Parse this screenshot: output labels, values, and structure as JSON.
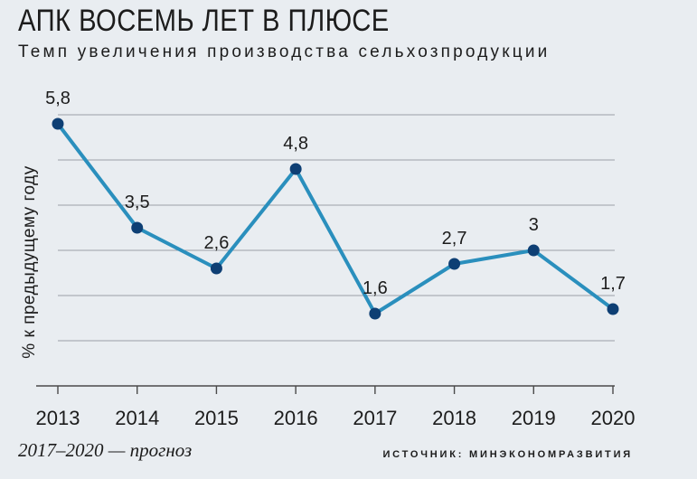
{
  "header": {
    "title": "АПК ВОСЕМЬ ЛЕТ В ПЛЮСЕ",
    "subtitle": "Темп увеличения производства сельхозпродукции"
  },
  "footer": {
    "forecast_note": "2017–2020 — прогноз",
    "source": "ИСТОЧНИК: МИНЭКОНОМРАЗВИТИЯ"
  },
  "colors": {
    "line": "#2a8fbd",
    "marker": "#0e3f74",
    "background": "#e9edf1"
  },
  "chart_data": {
    "type": "line",
    "title": "АПК ВОСЕМЬ ЛЕТ В ПЛЮСЕ",
    "subtitle": "Темп увеличения производства сельхозпродукции",
    "xlabel": "",
    "ylabel": "% к предыдущему году",
    "categories": [
      "2013",
      "2014",
      "2015",
      "2016",
      "2017",
      "2018",
      "2019",
      "2020"
    ],
    "series": [
      {
        "name": "Темп увеличения производства",
        "values": [
          5.8,
          3.5,
          2.6,
          4.8,
          1.6,
          2.7,
          3,
          1.7
        ],
        "labels": [
          "5,8",
          "3,5",
          "2,6",
          "4,8",
          "1,6",
          "2,7",
          "3",
          "1,7"
        ]
      }
    ],
    "ylim": [
      0,
      6
    ],
    "yticks": [
      1,
      2,
      3,
      4,
      5,
      6
    ],
    "grid": true,
    "forecast_range": [
      "2017",
      "2020"
    ]
  }
}
